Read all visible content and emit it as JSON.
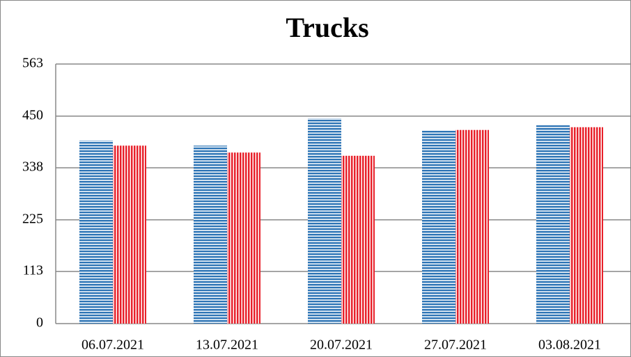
{
  "chart_data": {
    "type": "bar",
    "title": "Trucks",
    "categories": [
      "06.07.2021",
      "13.07.2021",
      "20.07.2021",
      "27.07.2021",
      "03.08.2021"
    ],
    "series": [
      {
        "color": "#2e75b6",
        "values": [
          397,
          386,
          445,
          420,
          430
        ]
      },
      {
        "color": "#e8202a",
        "values": [
          386,
          371,
          364,
          420,
          426
        ]
      }
    ],
    "ylim": [
      0,
      563
    ],
    "yticks": [
      0,
      113,
      225,
      338,
      450,
      563
    ],
    "grid": true
  }
}
